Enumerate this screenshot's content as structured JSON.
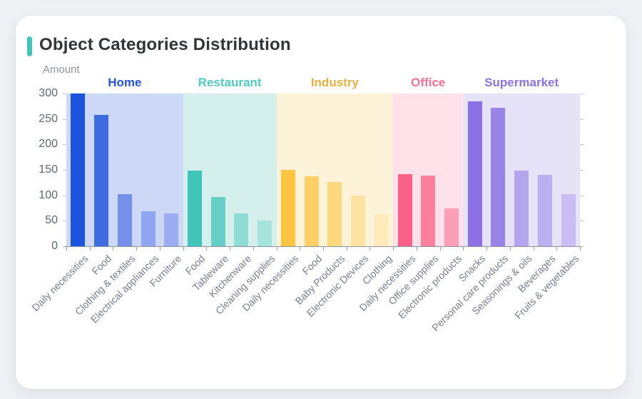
{
  "page": {
    "title": "Object Categories Distribution",
    "accent_color": "#3fc5bc",
    "card_background": "#ffffff",
    "page_background": "#eef0f4"
  },
  "chart_data": {
    "type": "bar",
    "title": "Object Categories Distribution",
    "xlabel": "",
    "ylabel": "Amount",
    "ylim": [
      0,
      300
    ],
    "yticks": [
      0,
      50,
      100,
      150,
      200,
      250,
      300
    ],
    "grid": false,
    "legend_position": "none",
    "axis_colors": {
      "axis_line": "#8f949c",
      "y_label": "#5f6670",
      "x_label": "#767e8e"
    },
    "groups": [
      {
        "name": "Home",
        "label_color": "#2653e0",
        "band_color": "#cdd7f6",
        "bars": [
          {
            "label": "Daily necessities",
            "value": 300,
            "color": "#1a53dd"
          },
          {
            "label": "Food",
            "value": 258,
            "color": "#3d6ce1"
          },
          {
            "label": "Clothing & textiles",
            "value": 102,
            "color": "#7590ea"
          },
          {
            "label": "Electrical appliances",
            "value": 69,
            "color": "#90a5ef"
          },
          {
            "label": "Furniture",
            "value": 64,
            "color": "#9aadf1"
          }
        ]
      },
      {
        "name": "Restaurant",
        "label_color": "#4ecbc2",
        "band_color": "#d5efec",
        "bars": [
          {
            "label": "Food",
            "value": 148,
            "color": "#41c4ba"
          },
          {
            "label": "Tableware",
            "value": 97,
            "color": "#65cfc6"
          },
          {
            "label": "Kitchenware",
            "value": 65,
            "color": "#8edcd5"
          },
          {
            "label": "Cleaning supplies",
            "value": 51,
            "color": "#a7e3dd"
          }
        ]
      },
      {
        "name": "Industry",
        "label_color": "#e9b041",
        "band_color": "#fdf3d9",
        "bars": [
          {
            "label": "Daily necessities",
            "value": 150,
            "color": "#fdc53f"
          },
          {
            "label": "Food",
            "value": 138,
            "color": "#fdd065"
          },
          {
            "label": "Baby Products",
            "value": 126,
            "color": "#fdd87f"
          },
          {
            "label": "Electronic Devices",
            "value": 99,
            "color": "#fee3a2"
          },
          {
            "label": "Clothing",
            "value": 63,
            "color": "#feeaba"
          }
        ]
      },
      {
        "name": "Office",
        "label_color": "#fa6e91",
        "band_color": "#fee1e9",
        "bars": [
          {
            "label": "Daily necessities",
            "value": 142,
            "color": "#fa6188"
          },
          {
            "label": "Office supplies",
            "value": 139,
            "color": "#fb809e"
          },
          {
            "label": "Electronic products",
            "value": 75,
            "color": "#fc9fb6"
          }
        ]
      },
      {
        "name": "Supermarket",
        "label_color": "#8b72e3",
        "band_color": "#e6e2f8",
        "bars": [
          {
            "label": "Snacks",
            "value": 285,
            "color": "#8b71e4"
          },
          {
            "label": "Personal care products",
            "value": 272,
            "color": "#9a83e7"
          },
          {
            "label": "Seasonings & oils",
            "value": 148,
            "color": "#b3a5ee"
          },
          {
            "label": "Beverages",
            "value": 140,
            "color": "#bcafef"
          },
          {
            "label": "Fruits & vegetables",
            "value": 102,
            "color": "#c9bdf3"
          }
        ]
      }
    ]
  }
}
